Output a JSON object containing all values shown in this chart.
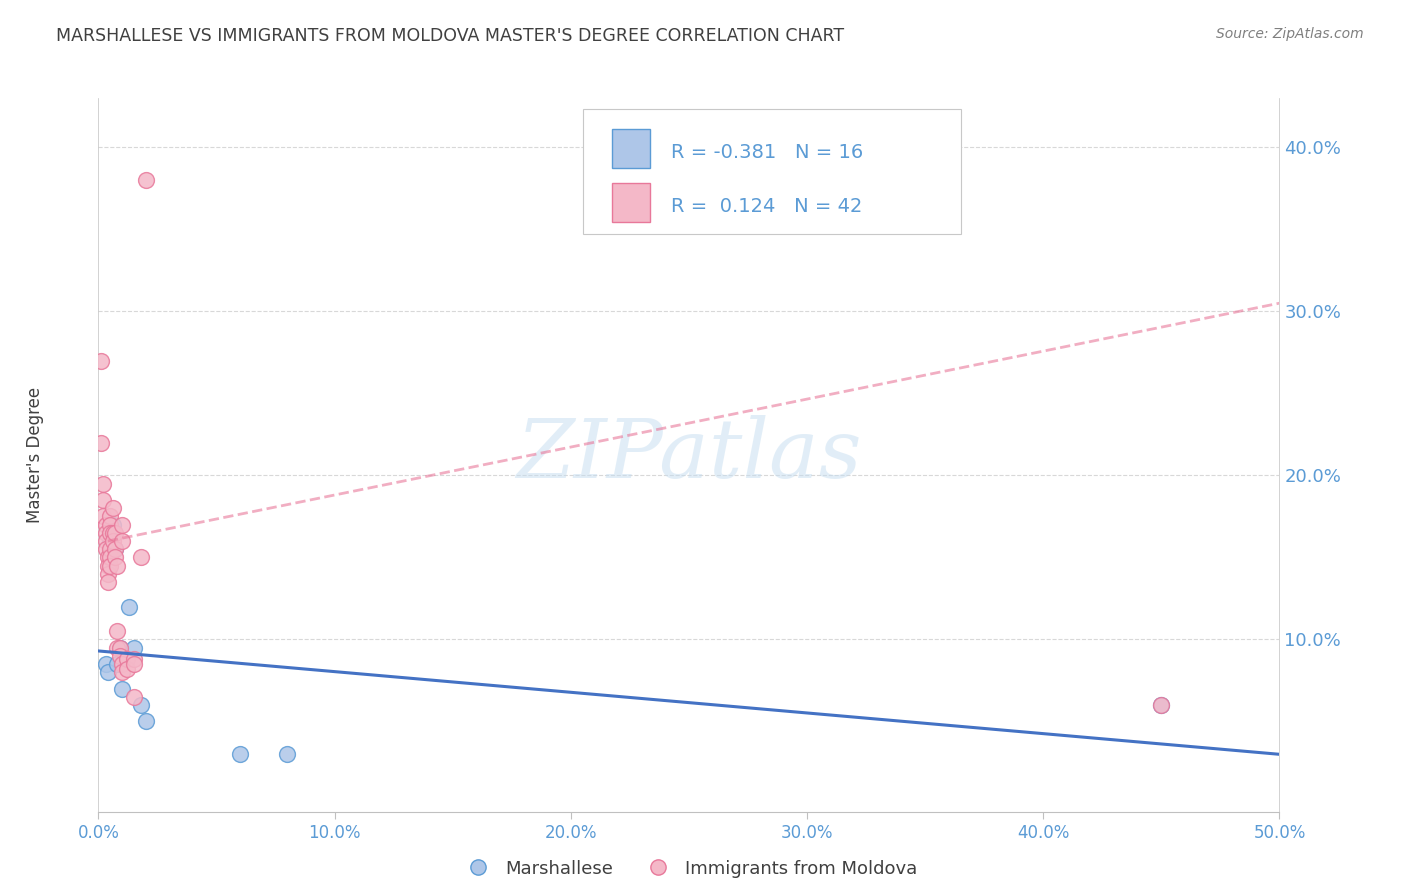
{
  "title": "MARSHALLESE VS IMMIGRANTS FROM MOLDOVA MASTER'S DEGREE CORRELATION CHART",
  "source": "Source: ZipAtlas.com",
  "ylabel": "Master's Degree",
  "watermark": "ZIPatlas",
  "legend_blue_r": "-0.381",
  "legend_blue_n": "16",
  "legend_pink_r": " 0.124",
  "legend_pink_n": "42",
  "legend_label_blue": "Marshallese",
  "legend_label_pink": "Immigrants from Moldova",
  "xlim": [
    0.0,
    0.5
  ],
  "ylim": [
    -0.005,
    0.43
  ],
  "yticks": [
    0.1,
    0.2,
    0.3,
    0.4
  ],
  "xticks": [
    0.0,
    0.1,
    0.2,
    0.3,
    0.4,
    0.5
  ],
  "blue_dot_color": "#aec6e8",
  "pink_dot_color": "#f4b8c8",
  "blue_edge_color": "#5b9bd5",
  "pink_edge_color": "#e8789a",
  "blue_line_color": "#4472c4",
  "pink_line_color": "#e05880",
  "axis_tick_color": "#5b9bd5",
  "title_color": "#404040",
  "source_color": "#808080",
  "grid_color": "#d8d8d8",
  "blue_scatter_x": [
    0.003,
    0.004,
    0.005,
    0.005,
    0.006,
    0.007,
    0.008,
    0.009,
    0.01,
    0.013,
    0.015,
    0.018,
    0.02,
    0.06,
    0.08,
    0.45
  ],
  "blue_scatter_y": [
    0.085,
    0.08,
    0.165,
    0.16,
    0.17,
    0.155,
    0.085,
    0.095,
    0.07,
    0.12,
    0.095,
    0.06,
    0.05,
    0.03,
    0.03,
    0.06
  ],
  "pink_scatter_x": [
    0.001,
    0.001,
    0.002,
    0.002,
    0.002,
    0.003,
    0.003,
    0.003,
    0.003,
    0.004,
    0.004,
    0.004,
    0.004,
    0.005,
    0.005,
    0.005,
    0.005,
    0.005,
    0.005,
    0.006,
    0.006,
    0.006,
    0.007,
    0.007,
    0.007,
    0.008,
    0.008,
    0.008,
    0.009,
    0.009,
    0.01,
    0.01,
    0.01,
    0.01,
    0.012,
    0.012,
    0.015,
    0.015,
    0.015,
    0.018,
    0.02,
    0.45
  ],
  "pink_scatter_y": [
    0.27,
    0.22,
    0.195,
    0.185,
    0.175,
    0.17,
    0.165,
    0.16,
    0.155,
    0.15,
    0.145,
    0.14,
    0.135,
    0.175,
    0.17,
    0.165,
    0.155,
    0.15,
    0.145,
    0.18,
    0.165,
    0.16,
    0.165,
    0.155,
    0.15,
    0.145,
    0.105,
    0.095,
    0.095,
    0.09,
    0.17,
    0.16,
    0.085,
    0.08,
    0.088,
    0.082,
    0.088,
    0.085,
    0.065,
    0.15,
    0.38,
    0.06
  ],
  "blue_trend_x": [
    0.0,
    0.5
  ],
  "blue_trend_y": [
    0.093,
    0.03
  ],
  "pink_trend_x": [
    0.004,
    0.5
  ],
  "pink_trend_y": [
    0.16,
    0.305
  ]
}
